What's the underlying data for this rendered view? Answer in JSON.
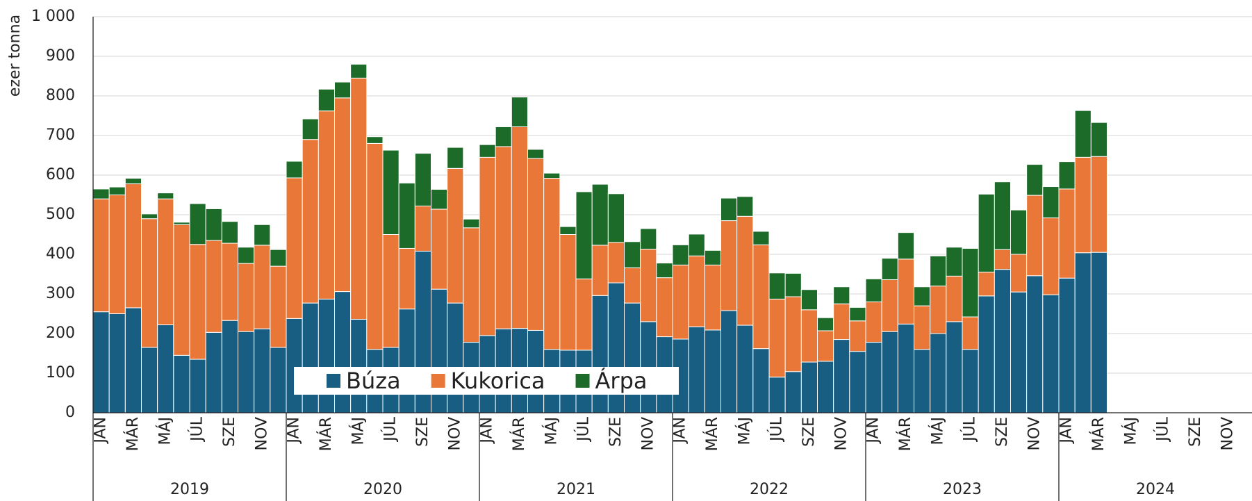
{
  "chart_data": {
    "type": "stacked_bar",
    "y_label": "ezer tonna",
    "categories": [
      "JAN",
      null,
      "MÁR",
      null,
      "MÁJ",
      null,
      "JÚL",
      null,
      "SZE",
      null,
      "NOV",
      null,
      "JAN",
      null,
      "MÁR",
      null,
      "MÁJ",
      null,
      "JÚL",
      null,
      "SZE",
      null,
      "NOV",
      null,
      "JAN",
      null,
      "MÁR",
      null,
      "MÁJ",
      null,
      "JÚL",
      null,
      "SZE",
      null,
      "NOV",
      null,
      "JAN",
      null,
      "MÁR",
      null,
      "MÁJ",
      null,
      "JÚL",
      null,
      "SZE",
      null,
      "NOV",
      null,
      "JAN",
      null,
      "MÁR",
      null,
      "MÁJ",
      null,
      "JÚL",
      null,
      "SZE",
      null,
      "NOV",
      null,
      "JAN",
      null,
      "MÁR",
      null,
      "MÁJ",
      null,
      "JÚL",
      null,
      "SZE",
      null,
      "NOV",
      null
    ],
    "years": [
      "2019",
      "2020",
      "2021",
      "2022",
      "2023",
      "2024"
    ],
    "series": [
      {
        "name": "Búza",
        "color": "#175e82",
        "values": [
          255,
          250,
          265,
          165,
          222,
          145,
          135,
          203,
          233,
          205,
          212,
          165,
          238,
          277,
          287,
          306,
          236,
          160,
          165,
          262,
          408,
          312,
          277,
          178,
          195,
          212,
          213,
          208,
          160,
          158,
          158,
          296,
          328,
          277,
          230,
          192,
          186,
          217,
          209,
          258,
          221,
          162,
          90,
          104,
          128,
          130,
          185,
          155,
          178,
          205,
          224,
          160,
          200,
          230,
          160,
          295,
          362,
          305,
          346,
          298,
          340,
          404,
          405,
          null,
          null,
          null,
          null,
          null,
          null,
          null,
          null,
          null
        ]
      },
      {
        "name": "Kukorica",
        "color": "#e97838",
        "values": [
          285,
          300,
          313,
          325,
          318,
          330,
          290,
          232,
          195,
          172,
          211,
          205,
          355,
          413,
          475,
          489,
          609,
          520,
          285,
          153,
          114,
          202,
          340,
          289,
          450,
          460,
          509,
          434,
          432,
          292,
          180,
          127,
          102,
          89,
          183,
          149,
          187,
          179,
          164,
          227,
          275,
          262,
          197,
          189,
          132,
          77,
          90,
          77,
          102,
          131,
          164,
          110,
          120,
          115,
          82,
          60,
          50,
          95,
          203,
          194,
          225,
          241,
          242,
          null,
          null,
          null,
          null,
          null,
          null,
          null,
          null,
          null
        ]
      },
      {
        "name": "Árpa",
        "color": "#1d6b29",
        "values": [
          25,
          20,
          14,
          12,
          15,
          6,
          103,
          80,
          55,
          41,
          52,
          42,
          42,
          52,
          55,
          40,
          35,
          17,
          213,
          165,
          133,
          50,
          53,
          22,
          32,
          50,
          75,
          23,
          13,
          20,
          220,
          154,
          123,
          66,
          52,
          37,
          51,
          55,
          37,
          57,
          50,
          34,
          66,
          59,
          51,
          33,
          43,
          34,
          58,
          54,
          67,
          48,
          76,
          73,
          173,
          197,
          171,
          112,
          78,
          79,
          69,
          118,
          86,
          null,
          null,
          null,
          null,
          null,
          null,
          null,
          null,
          null
        ]
      }
    ],
    "ylim": [
      0,
      1000
    ],
    "yticks": [
      0,
      100,
      200,
      300,
      400,
      500,
      600,
      700,
      800,
      900,
      {
        "value": 1000,
        "label": "1 000"
      }
    ],
    "grid": true
  }
}
